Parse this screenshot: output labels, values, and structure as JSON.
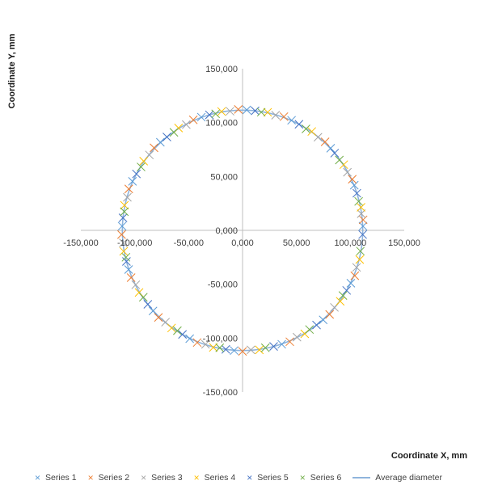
{
  "chart_data": {
    "type": "scatter",
    "title": "",
    "xlabel": "Coordinate X, mm",
    "ylabel": "Coordinate Y, mm",
    "xlim": [
      -150000,
      150000
    ],
    "ylim": [
      -150000,
      150000
    ],
    "x_ticks": [
      "-150,000",
      "-100,000",
      "-50,000",
      "0,000",
      "50,000",
      "100,000",
      "150,000"
    ],
    "y_ticks": [
      "150,000",
      "100,000",
      "50,000",
      "0,000",
      "-50,000",
      "-100,000",
      "-150,000"
    ],
    "x_tick_values": [
      -150000,
      -100000,
      -50000,
      0,
      50000,
      100000,
      150000
    ],
    "y_tick_values": [
      150000,
      100000,
      50000,
      0,
      -50000,
      -100000,
      -150000
    ],
    "grid": false,
    "legend_position": "bottom",
    "average_diameter": {
      "name": "Average diameter",
      "radius": 111500,
      "color": "#8fb4dc"
    },
    "series": [
      {
        "name": "Series 1",
        "color": "#5b9bd5",
        "radius": 111800,
        "angles_deg": [
          2,
          22,
          43,
          66,
          88,
          110,
          133,
          156,
          178,
          199,
          222,
          244,
          266,
          289,
          312,
          334
        ]
      },
      {
        "name": "Series 2",
        "color": "#ed7d31",
        "radius": 112300,
        "angles_deg": [
          5,
          25,
          47,
          70,
          92,
          114,
          137,
          160,
          182,
          203,
          226,
          248,
          270,
          293,
          316,
          338
        ]
      },
      {
        "name": "Series 3",
        "color": "#a5a5a5",
        "radius": 111200,
        "angles_deg": [
          8,
          29,
          51,
          74,
          96,
          118,
          141,
          164,
          186,
          207,
          230,
          252,
          274,
          297,
          320,
          342
        ]
      },
      {
        "name": "Series 4",
        "color": "#ffc000",
        "radius": 112000,
        "angles_deg": [
          11,
          33,
          55,
          78,
          100,
          122,
          145,
          168,
          190,
          211,
          234,
          256,
          278,
          301,
          324,
          346
        ]
      },
      {
        "name": "Series 5",
        "color": "#4472c4",
        "radius": 111500,
        "angles_deg": [
          -2,
          18,
          40,
          62,
          84,
          106,
          129,
          152,
          174,
          195,
          218,
          240,
          262,
          285,
          308,
          330
        ]
      },
      {
        "name": "Series 6",
        "color": "#70ad47",
        "radius": 111000,
        "angles_deg": [
          14,
          36,
          58,
          81,
          103,
          125,
          148,
          171,
          193,
          214,
          237,
          259,
          281,
          304,
          327,
          350
        ]
      }
    ]
  }
}
